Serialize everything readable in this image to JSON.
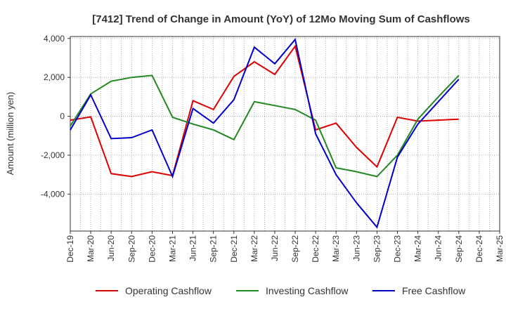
{
  "chart_data": {
    "type": "line",
    "title": "[7412]  Trend of Change in Amount (YoY) of 12Mo Moving Sum of Cashflows",
    "xlabel": "",
    "ylabel": "Amount (million yen)",
    "ylim": [
      -5900,
      4100
    ],
    "yticks": [
      4000,
      2000,
      0,
      -2000,
      -4000
    ],
    "ytick_labels": [
      "4,000",
      "2,000",
      "0",
      "-2,000",
      "-4,000"
    ],
    "grid": true,
    "legend_position": "bottom",
    "categories": [
      "Dec-19",
      "Mar-20",
      "Jun-20",
      "Sep-20",
      "Dec-20",
      "Mar-21",
      "Jun-21",
      "Sep-21",
      "Dec-21",
      "Mar-22",
      "Jun-22",
      "Sep-22",
      "Dec-22",
      "Mar-23",
      "Jun-23",
      "Sep-23",
      "Dec-23",
      "Mar-24",
      "Jun-24",
      "Sep-24",
      "Dec-24",
      "Mar-25"
    ],
    "x_label_indices": [
      0,
      2,
      4,
      6,
      8,
      10,
      12,
      14,
      16,
      18,
      20,
      22,
      24,
      26,
      28,
      30,
      32,
      34,
      36,
      38,
      40,
      42
    ],
    "n_minor": 43,
    "series": [
      {
        "name": "Operating Cashflow",
        "color": "#dd0000",
        "values": [
          -200,
          -30,
          -2950,
          -3100,
          -2850,
          -3050,
          800,
          350,
          2050,
          2800,
          2150,
          3600,
          -700,
          -350,
          -1600,
          -2600,
          -50,
          -250,
          -200,
          -150,
          null,
          null
        ]
      },
      {
        "name": "Investing Cashflow",
        "color": "#228822",
        "values": [
          -500,
          1150,
          1800,
          2000,
          2100,
          -50,
          -400,
          -700,
          -1200,
          750,
          550,
          350,
          -200,
          -2650,
          -2850,
          -3100,
          -2000,
          -150,
          1000,
          2100,
          null,
          null
        ]
      },
      {
        "name": "Free Cashflow",
        "color": "#0000cc",
        "values": [
          -700,
          1100,
          -1150,
          -1100,
          -700,
          -3100,
          400,
          -350,
          850,
          3550,
          2700,
          3950,
          -900,
          -3000,
          -4450,
          -5700,
          -2100,
          -400,
          750,
          1900,
          null,
          null
        ]
      }
    ]
  }
}
